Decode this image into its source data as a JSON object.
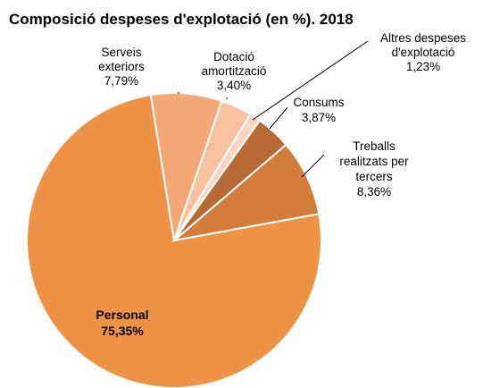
{
  "chart_data": {
    "type": "pie",
    "title": "Composició despeses d'explotació (en %). 2018",
    "slices": [
      {
        "label": [
          "Personal"
        ],
        "value": 75.35,
        "value_text": "75,35%",
        "color": "#EE9345"
      },
      {
        "label": [
          "Serveis",
          "exteriors"
        ],
        "value": 7.79,
        "value_text": "7,79%",
        "color": "#F4A777"
      },
      {
        "label": [
          "Dotació",
          "amortització"
        ],
        "value": 3.4,
        "value_text": "3,40%",
        "color": "#F8C1A0"
      },
      {
        "label": [
          "Altres despeses",
          "d'explotació"
        ],
        "value": 1.23,
        "value_text": "1,23%",
        "color": "#FAD4BF"
      },
      {
        "label": [
          "Consums"
        ],
        "value": 3.87,
        "value_text": "3,87%",
        "color": "#B86A35"
      },
      {
        "label": [
          "Treballs",
          "realitzats per",
          "tercers"
        ],
        "value": 8.36,
        "value_text": "8,36%",
        "color": "#D47D3A"
      }
    ]
  }
}
